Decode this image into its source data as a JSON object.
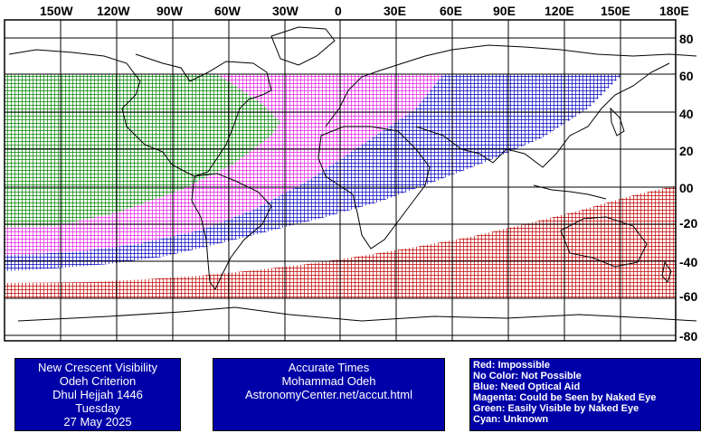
{
  "top_labels": [
    "150W",
    "120W",
    "90W",
    "60W",
    "30W",
    "0",
    "30E",
    "60E",
    "90E",
    "120E",
    "150E",
    "180E"
  ],
  "right_labels": [
    "80",
    "60",
    "40",
    "20",
    "00",
    "-20",
    "-40",
    "-60",
    "-80"
  ],
  "info_panel": {
    "line1": "New Crescent Visibility",
    "line2": "Odeh Criterion",
    "line3": "Dhul Hejjah 1446",
    "line4": "Tuesday",
    "line5": "27 May 2025"
  },
  "credit_panel": {
    "line1": "Accurate Times",
    "line2": "Mohammad Odeh",
    "line3": "AstronomyCenter.net/accut.html"
  },
  "legend": [
    {
      "text": "Red: Impossible",
      "color": "#c00000"
    },
    {
      "text": "No Color: Not Possible",
      "color": ""
    },
    {
      "text": "Blue: Need Optical Aid",
      "color": "#0000c0"
    },
    {
      "text": "Magenta: Could be Seen by Naked Eye",
      "color": "#e020e0"
    },
    {
      "text": "Green: Easily Visible by Naked Eye",
      "color": "#008000"
    },
    {
      "text": "Cyan: Unknown",
      "color": "#00c0c0"
    }
  ],
  "colors": {
    "green": "#008000",
    "magenta": "#e020e0",
    "blue": "#0000c0",
    "red": "#c00000",
    "coast": "#000000",
    "panel": "#0000a8"
  }
}
